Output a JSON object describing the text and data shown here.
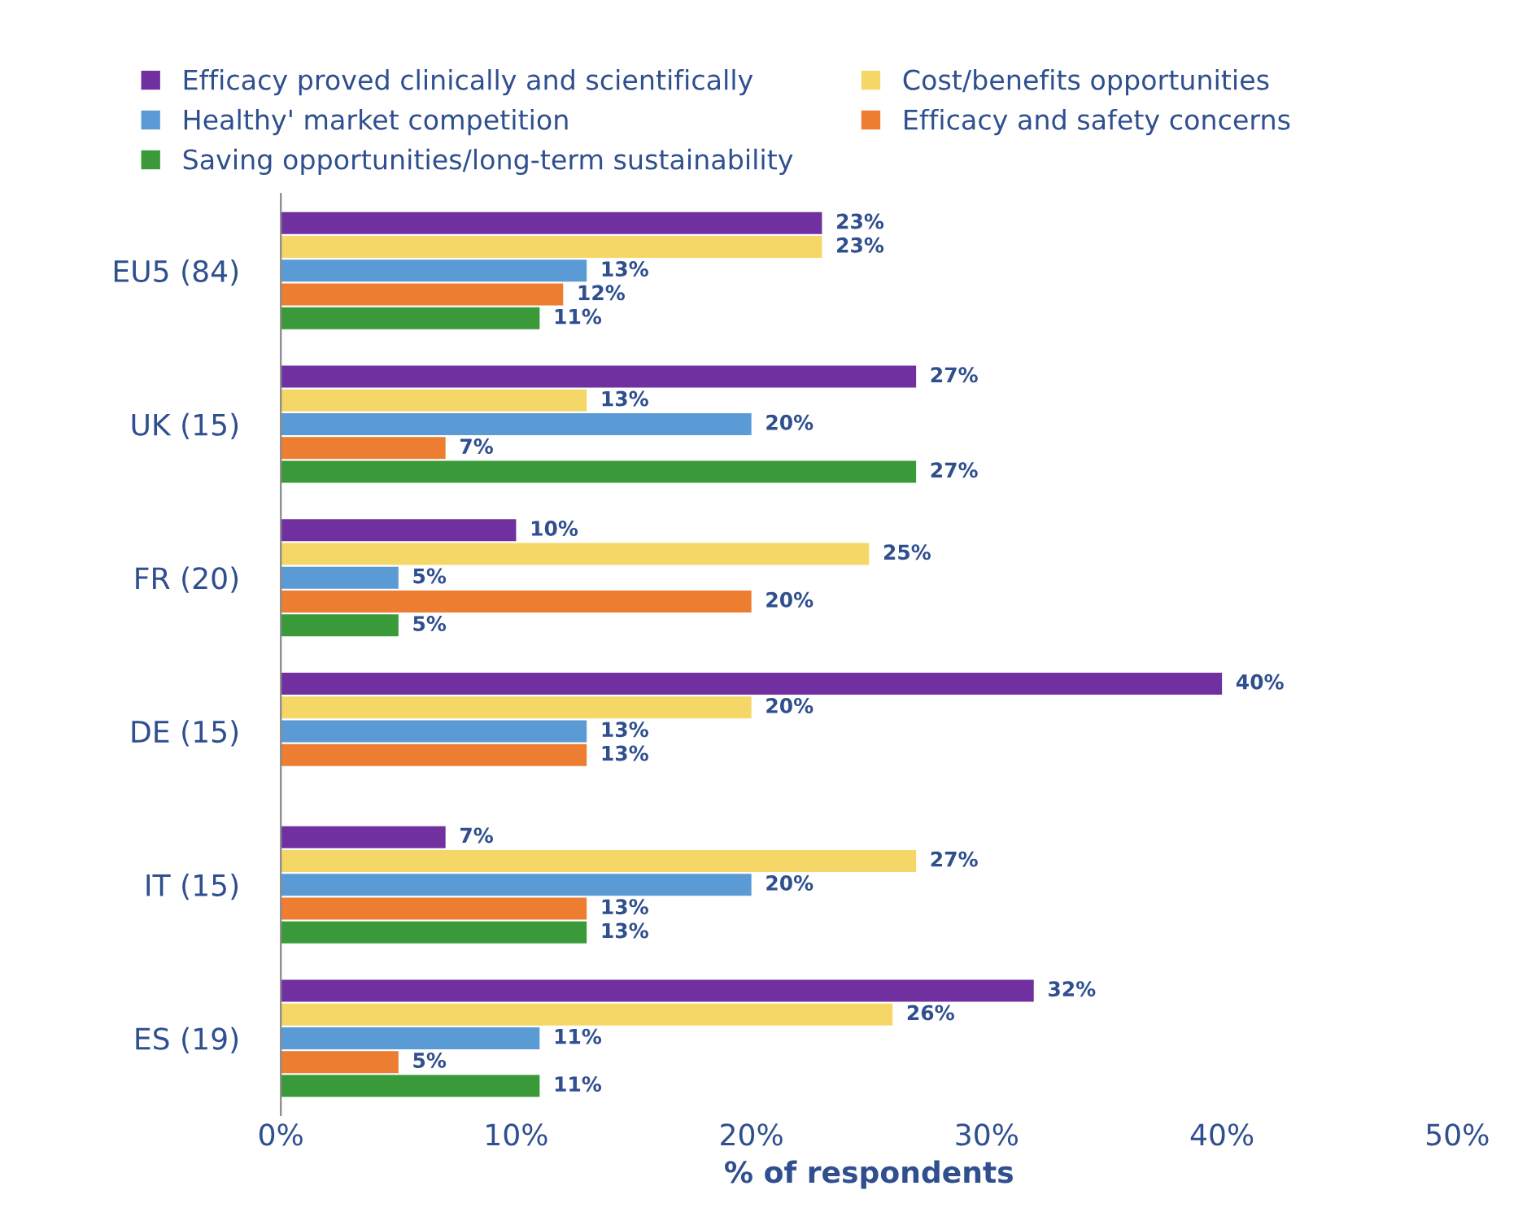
{
  "chart_data": {
    "type": "bar",
    "orientation": "horizontal",
    "xlabel": "% of respondents",
    "categories": [
      "EU5 (84)",
      "UK (15)",
      "FR (20)",
      "DE (15)",
      "IT (15)",
      "ES (19)"
    ],
    "series": [
      {
        "name": "Efficacy proved clinically and scientifically",
        "color": "#7030a0",
        "values": [
          23,
          27,
          10,
          40,
          7,
          32
        ],
        "value_labels": [
          "23%",
          "27%",
          "10%",
          "40%",
          "7%",
          "32%"
        ]
      },
      {
        "name": "Cost/benefits opportunities",
        "color": "#f5d767",
        "values": [
          23,
          13,
          25,
          20,
          27,
          26
        ],
        "value_labels": [
          "23%",
          "13%",
          "25%",
          "20%",
          "27%",
          "26%"
        ]
      },
      {
        "name": "Healthy' market competition",
        "color": "#5b9bd5",
        "values": [
          13,
          20,
          5,
          13,
          20,
          11
        ],
        "value_labels": [
          "13%",
          "20%",
          "5%",
          "13%",
          "20%",
          "11%"
        ]
      },
      {
        "name": "Efficacy and safety concerns",
        "color": "#ed7d31",
        "values": [
          12,
          7,
          20,
          13,
          13,
          5
        ],
        "value_labels": [
          "12%",
          "7%",
          "20%",
          "13%",
          "13%",
          "5%"
        ]
      },
      {
        "name": "Saving opportunities/long-term sustainability",
        "color": "#3a9a3a",
        "values": [
          11,
          27,
          5,
          null,
          13,
          11
        ],
        "value_labels": [
          "11%",
          "27%",
          "5%",
          null,
          "13%",
          "11%"
        ]
      }
    ],
    "xlim": [
      0,
      50
    ],
    "xticks": [
      {
        "value": 0,
        "label": "0%"
      },
      {
        "value": 10,
        "label": "10%"
      },
      {
        "value": 20,
        "label": "20%"
      },
      {
        "value": 30,
        "label": "30%"
      },
      {
        "value": 40,
        "label": "40%"
      },
      {
        "value": 50,
        "label": "50%"
      }
    ],
    "legend": "top",
    "grid": false
  }
}
